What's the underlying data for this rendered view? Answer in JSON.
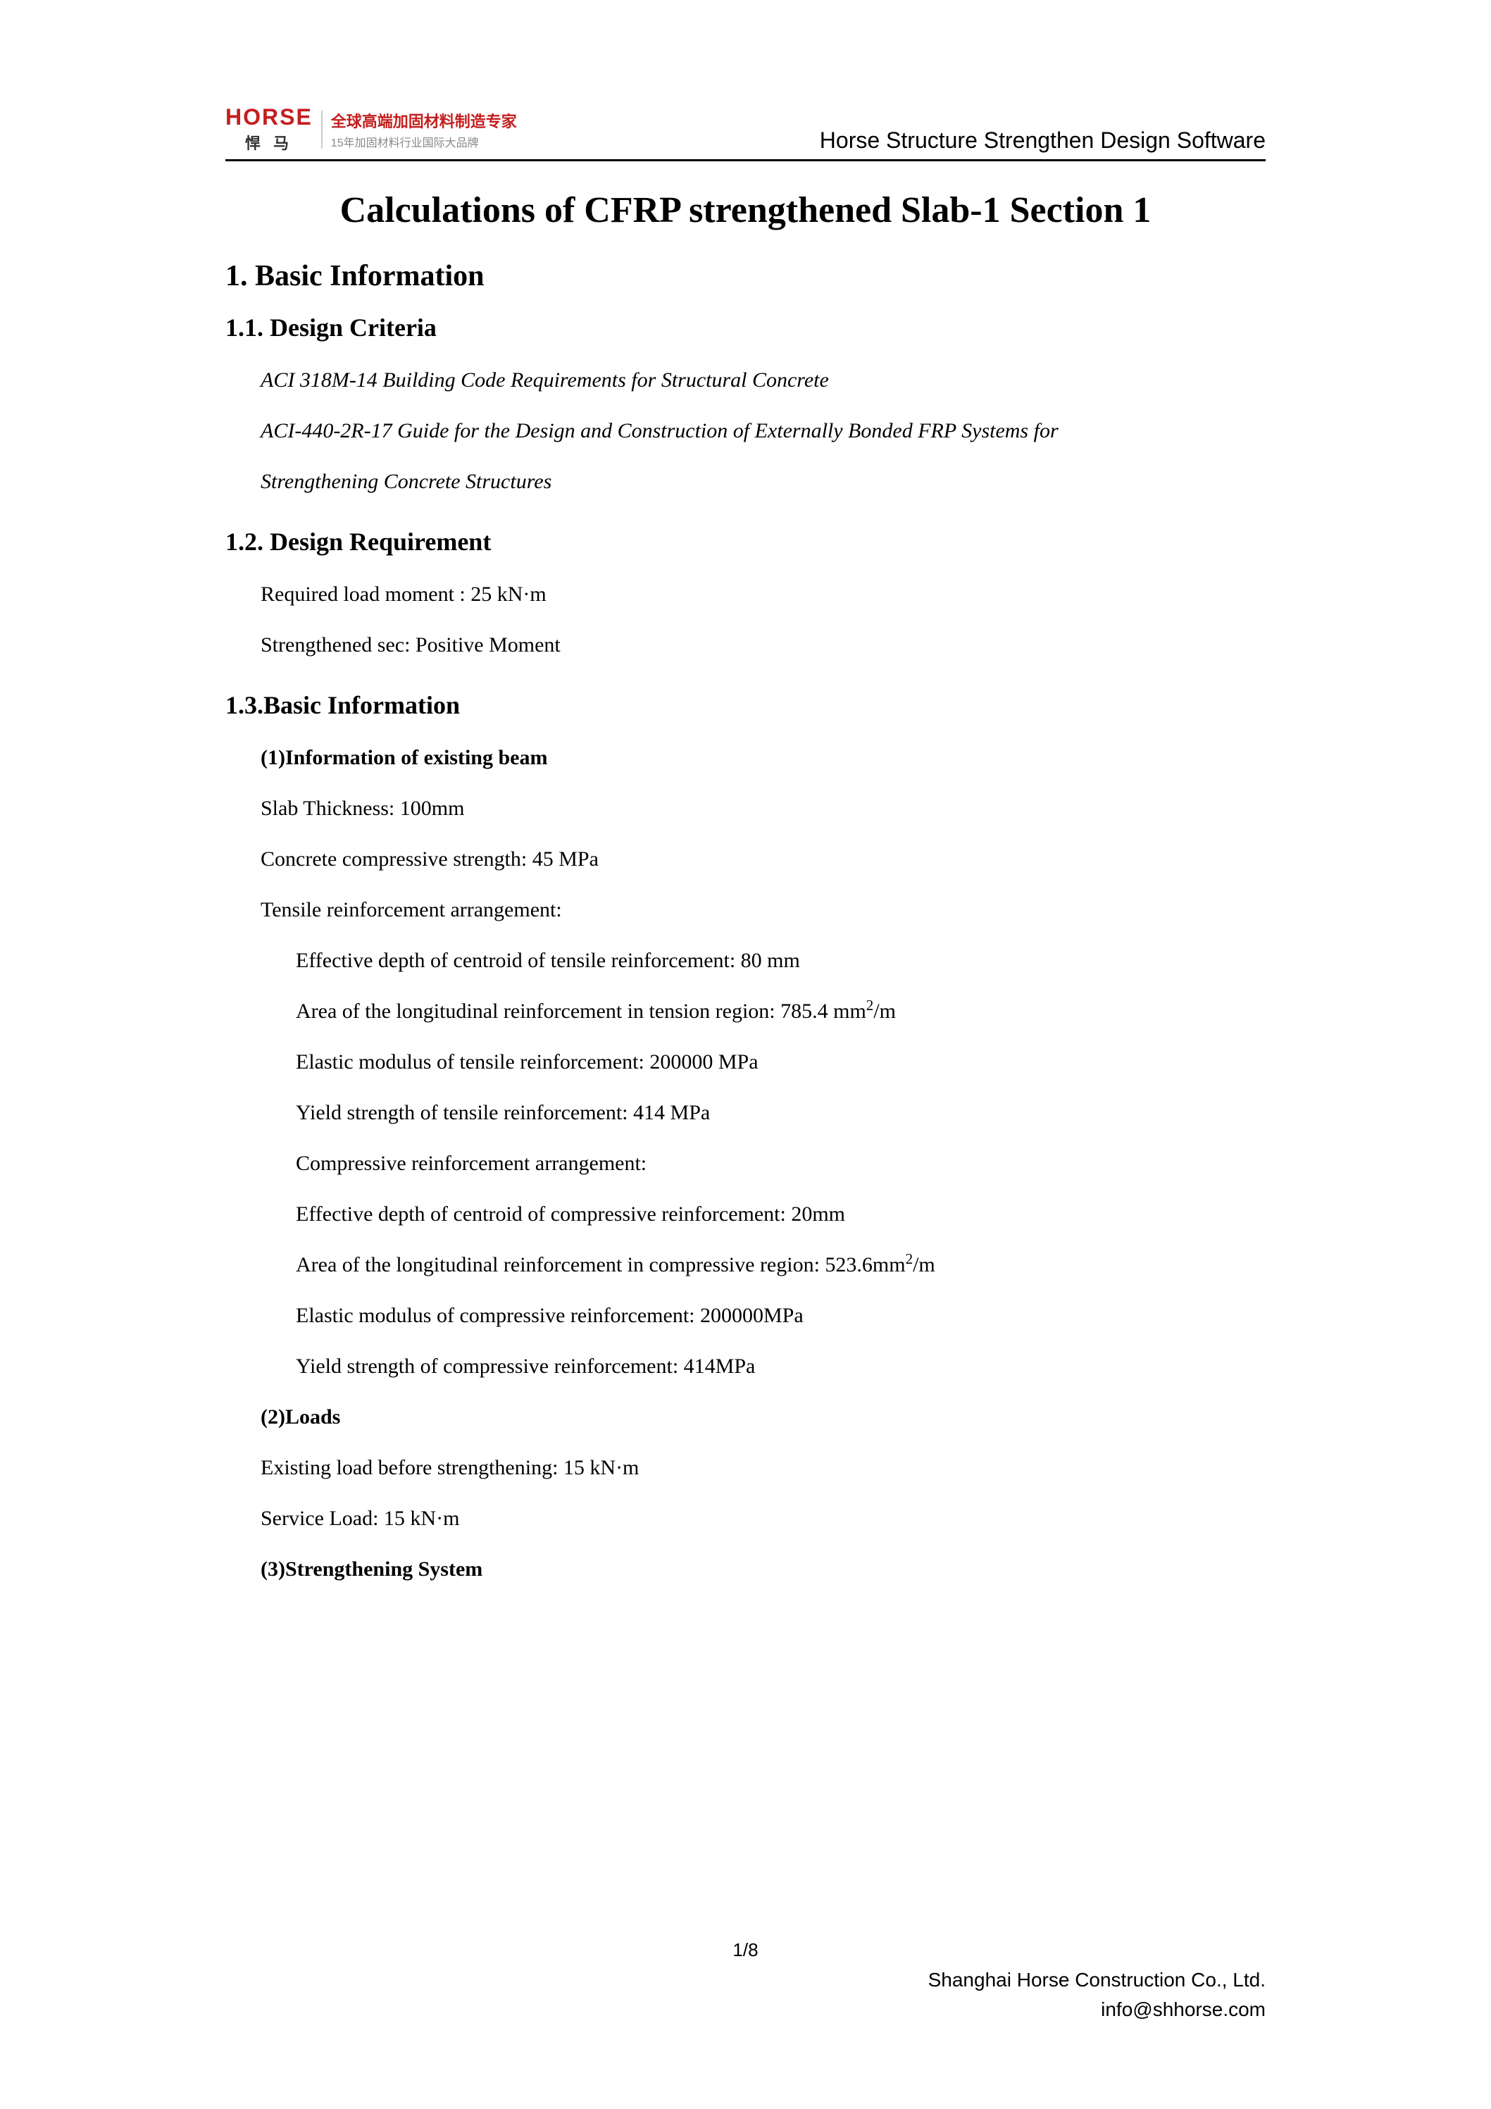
{
  "header": {
    "logo_brand": "HORSE",
    "logo_cn": "悍 马",
    "logo_red_text": "全球高端加固材料制造专家",
    "logo_gray_text": "15年加固材料行业国际大品牌",
    "software_title": "Horse Structure Strengthen Design Software"
  },
  "doc_title": "Calculations of CFRP strengthened Slab-1 Section 1",
  "sections": {
    "s1": "1. Basic Information",
    "s11": "1.1. Design Criteria",
    "s11_l1": "ACI 318M-14 Building Code Requirements for Structural Concrete",
    "s11_l2": "ACI-440-2R-17 Guide for the Design and Construction of Externally Bonded FRP Systems for",
    "s11_l3": "Strengthening Concrete Structures",
    "s12": "1.2. Design Requirement",
    "s12_l1": "Required load moment : 25 kN·m",
    "s12_l2": "Strengthened sec: Positive Moment",
    "s13": "1.3.Basic Information",
    "s13_h1": "(1)Information of existing beam",
    "s13_l1": "Slab Thickness: 100mm",
    "s13_l2": "Concrete compressive strength: 45 MPa",
    "s13_l3": "Tensile reinforcement arrangement:",
    "s13_l4": "Effective depth of centroid of tensile reinforcement: 80 mm",
    "s13_l5a": "Area of the longitudinal reinforcement in tension region: 785.4 mm",
    "s13_l5b": "/m",
    "s13_l6": "Elastic modulus of tensile reinforcement: 200000 MPa",
    "s13_l7": "Yield strength of tensile reinforcement: 414 MPa",
    "s13_l8": "Compressive reinforcement arrangement:",
    "s13_l9": "Effective depth of centroid of compressive reinforcement: 20mm",
    "s13_l10a": "Area of the longitudinal reinforcement in compressive region: 523.6mm",
    "s13_l10b": "/m",
    "s13_l11": "Elastic modulus of compressive reinforcement: 200000MPa",
    "s13_l12": "Yield strength of compressive reinforcement: 414MPa",
    "s13_h2": "(2)Loads",
    "s13_l13": "Existing load before strengthening: 15 kN·m",
    "s13_l14": "Service Load: 15 kN·m",
    "s13_h3": "(3)Strengthening System"
  },
  "page_number": "1/8",
  "footer": {
    "company": "Shanghai Horse Construction Co., Ltd.",
    "email": "info@shhorse.com"
  },
  "colors": {
    "brand_red": "#c41e1e",
    "text_black": "#000000",
    "text_gray": "#888888",
    "divider_gray": "#cccccc",
    "background": "#ffffff"
  },
  "typography": {
    "doc_title_size_pt": 26,
    "h1_size_pt": 21,
    "h2_size_pt": 18,
    "body_size_pt": 15,
    "header_font": "Arial",
    "body_font": "Times New Roman"
  }
}
